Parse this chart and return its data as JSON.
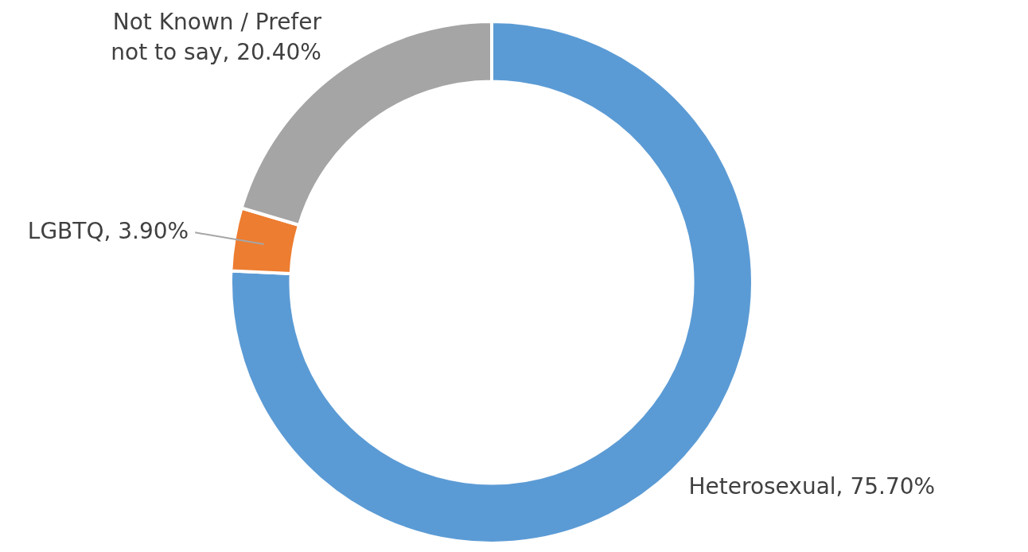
{
  "chart_data": {
    "type": "donut",
    "categories": [
      "Heterosexual",
      "LGBTQ",
      "Not Known / Prefer not to say"
    ],
    "values": [
      75.7,
      3.9,
      20.4
    ],
    "colors": [
      "#5b9bd5",
      "#ed7d31",
      "#a5a5a5"
    ],
    "value_labels": [
      "75.70%",
      "3.90%",
      "20.40%"
    ],
    "legend": false
  }
}
